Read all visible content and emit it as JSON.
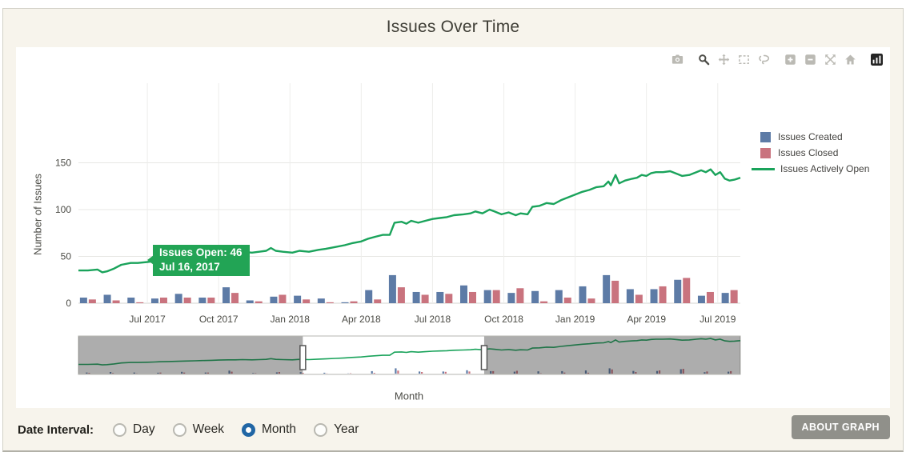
{
  "page": {
    "title": "Issues Over Time",
    "background": "#f7f4ec",
    "about_button_label": "ABOUT GRAPH"
  },
  "modebar": {
    "buttons": [
      "camera",
      "zoom",
      "pan",
      "box-select",
      "lasso-select",
      "zoom-in",
      "zoom-out",
      "autoscale",
      "reset-home",
      "plotly-logo"
    ],
    "active_button": "zoom"
  },
  "legend": {
    "items": [
      {
        "label": "Issues Created",
        "marker": "square",
        "color": "#5d7ba6"
      },
      {
        "label": "Issues Closed",
        "marker": "square",
        "color": "#c9737e"
      },
      {
        "label": "Issues Actively Open",
        "marker": "line",
        "color": "#1aa35b"
      }
    ]
  },
  "tooltip": {
    "line1": "Issues Open: 46",
    "line2": "Jul 16, 2017",
    "bg": "#22a455"
  },
  "controls": {
    "label": "Date Interval:",
    "options": [
      {
        "label": "Day",
        "selected": false
      },
      {
        "label": "Week",
        "selected": false
      },
      {
        "label": "Month",
        "selected": true
      },
      {
        "label": "Year",
        "selected": false
      }
    ],
    "accent": "#2166a5"
  },
  "chart_data": {
    "type": "bar+line",
    "title": "Issues Over Time",
    "xlabel": "Month",
    "ylabel": "Number of Issues",
    "ylim": [
      0,
      160
    ],
    "yticks": [
      0,
      50,
      100,
      150
    ],
    "xticklabels": [
      "Jul 2017",
      "Oct 2017",
      "Jan 2018",
      "Apr 2018",
      "Jul 2018",
      "Oct 2018",
      "Jan 2019",
      "Apr 2019",
      "Jul 2019"
    ],
    "grid": true,
    "legend_position": "right",
    "months": [
      "Apr 2017",
      "May 2017",
      "Jun 2017",
      "Jul 2017",
      "Aug 2017",
      "Sep 2017",
      "Oct 2017",
      "Nov 2017",
      "Dec 2017",
      "Jan 2018",
      "Feb 2018",
      "Mar 2018",
      "Apr 2018",
      "May 2018",
      "Jun 2018",
      "Jul 2018",
      "Aug 2018",
      "Sep 2018",
      "Oct 2018",
      "Nov 2018",
      "Dec 2018",
      "Jan 2019",
      "Feb 2019",
      "Mar 2019",
      "Apr 2019",
      "May 2019",
      "Jun 2019",
      "Jul 2019"
    ],
    "series": [
      {
        "name": "Issues Created",
        "type": "bar",
        "color": "#5d7ba6",
        "values": [
          6,
          9,
          6,
          5,
          10,
          6,
          17,
          3,
          7,
          8,
          5,
          1,
          14,
          30,
          12,
          12,
          19,
          14,
          11,
          13,
          14,
          18,
          30,
          15,
          15,
          25,
          8,
          11
        ]
      },
      {
        "name": "Issues Closed",
        "type": "bar",
        "color": "#c9737e",
        "values": [
          4,
          3,
          1,
          6,
          6,
          6,
          11,
          2,
          9,
          4,
          1,
          2,
          4,
          17,
          9,
          10,
          12,
          14,
          16,
          2,
          6,
          5,
          24,
          9,
          18,
          27,
          12,
          14
        ]
      },
      {
        "name": "Issues Actively Open",
        "type": "line",
        "color": "#1aa35b",
        "points": [
          [
            -0.4,
            35
          ],
          [
            0,
            35
          ],
          [
            0.4,
            36
          ],
          [
            0.6,
            33
          ],
          [
            0.8,
            34
          ],
          [
            1.1,
            37
          ],
          [
            1.4,
            41
          ],
          [
            1.8,
            43
          ],
          [
            2.1,
            43
          ],
          [
            2.5,
            44
          ],
          [
            2.8,
            45
          ],
          [
            3.0,
            46
          ],
          [
            3.4,
            47
          ],
          [
            3.8,
            48
          ],
          [
            4.1,
            49
          ],
          [
            4.5,
            50
          ],
          [
            4.8,
            51
          ],
          [
            5.2,
            52
          ],
          [
            5.5,
            53
          ],
          [
            5.9,
            54
          ],
          [
            6.2,
            54
          ],
          [
            6.5,
            55
          ],
          [
            6.9,
            54
          ],
          [
            7.2,
            55
          ],
          [
            7.5,
            56
          ],
          [
            7.7,
            59
          ],
          [
            7.9,
            56
          ],
          [
            8.2,
            55
          ],
          [
            8.6,
            54
          ],
          [
            8.9,
            56
          ],
          [
            9.3,
            55
          ],
          [
            9.7,
            57
          ],
          [
            10.0,
            58
          ],
          [
            10.4,
            60
          ],
          [
            10.8,
            62
          ],
          [
            11.1,
            64
          ],
          [
            11.5,
            66
          ],
          [
            11.8,
            69
          ],
          [
            12.1,
            71
          ],
          [
            12.4,
            73
          ],
          [
            12.7,
            73
          ],
          [
            12.9,
            86
          ],
          [
            13.2,
            87
          ],
          [
            13.4,
            85
          ],
          [
            13.6,
            88
          ],
          [
            13.9,
            86
          ],
          [
            14.2,
            88
          ],
          [
            14.5,
            90
          ],
          [
            14.8,
            91
          ],
          [
            15.1,
            92
          ],
          [
            15.4,
            94
          ],
          [
            15.8,
            95
          ],
          [
            16.1,
            96
          ],
          [
            16.3,
            98
          ],
          [
            16.6,
            96
          ],
          [
            16.9,
            100
          ],
          [
            17.1,
            98
          ],
          [
            17.4,
            95
          ],
          [
            17.7,
            97
          ],
          [
            18.0,
            94
          ],
          [
            18.2,
            96
          ],
          [
            18.5,
            95
          ],
          [
            18.7,
            103
          ],
          [
            19.0,
            104
          ],
          [
            19.3,
            107
          ],
          [
            19.6,
            106
          ],
          [
            19.9,
            110
          ],
          [
            20.2,
            113
          ],
          [
            20.5,
            116
          ],
          [
            20.8,
            119
          ],
          [
            21.1,
            121
          ],
          [
            21.4,
            124
          ],
          [
            21.7,
            125
          ],
          [
            21.9,
            130
          ],
          [
            22.0,
            126
          ],
          [
            22.2,
            137
          ],
          [
            22.35,
            128
          ],
          [
            22.6,
            131
          ],
          [
            22.9,
            133
          ],
          [
            23.1,
            134
          ],
          [
            23.3,
            137
          ],
          [
            23.5,
            136
          ],
          [
            23.7,
            139
          ],
          [
            23.9,
            140
          ],
          [
            24.2,
            140
          ],
          [
            24.5,
            141
          ],
          [
            24.8,
            138
          ],
          [
            25.0,
            136
          ],
          [
            25.3,
            137
          ],
          [
            25.6,
            140
          ],
          [
            25.8,
            142
          ],
          [
            26.0,
            140
          ],
          [
            26.2,
            143
          ],
          [
            26.4,
            137
          ],
          [
            26.6,
            140
          ],
          [
            26.8,
            133
          ],
          [
            27.0,
            131
          ],
          [
            27.2,
            132
          ],
          [
            27.45,
            134
          ]
        ]
      }
    ],
    "rangeslider": {
      "masked_fractions": [
        [
          0,
          0.339
        ],
        [
          0.613,
          1.0
        ]
      ],
      "handle_fractions": [
        0.339,
        0.613
      ]
    },
    "highlighted_point": {
      "date": "Jul 16, 2017",
      "series": "Issues Actively Open",
      "value": 46
    }
  }
}
